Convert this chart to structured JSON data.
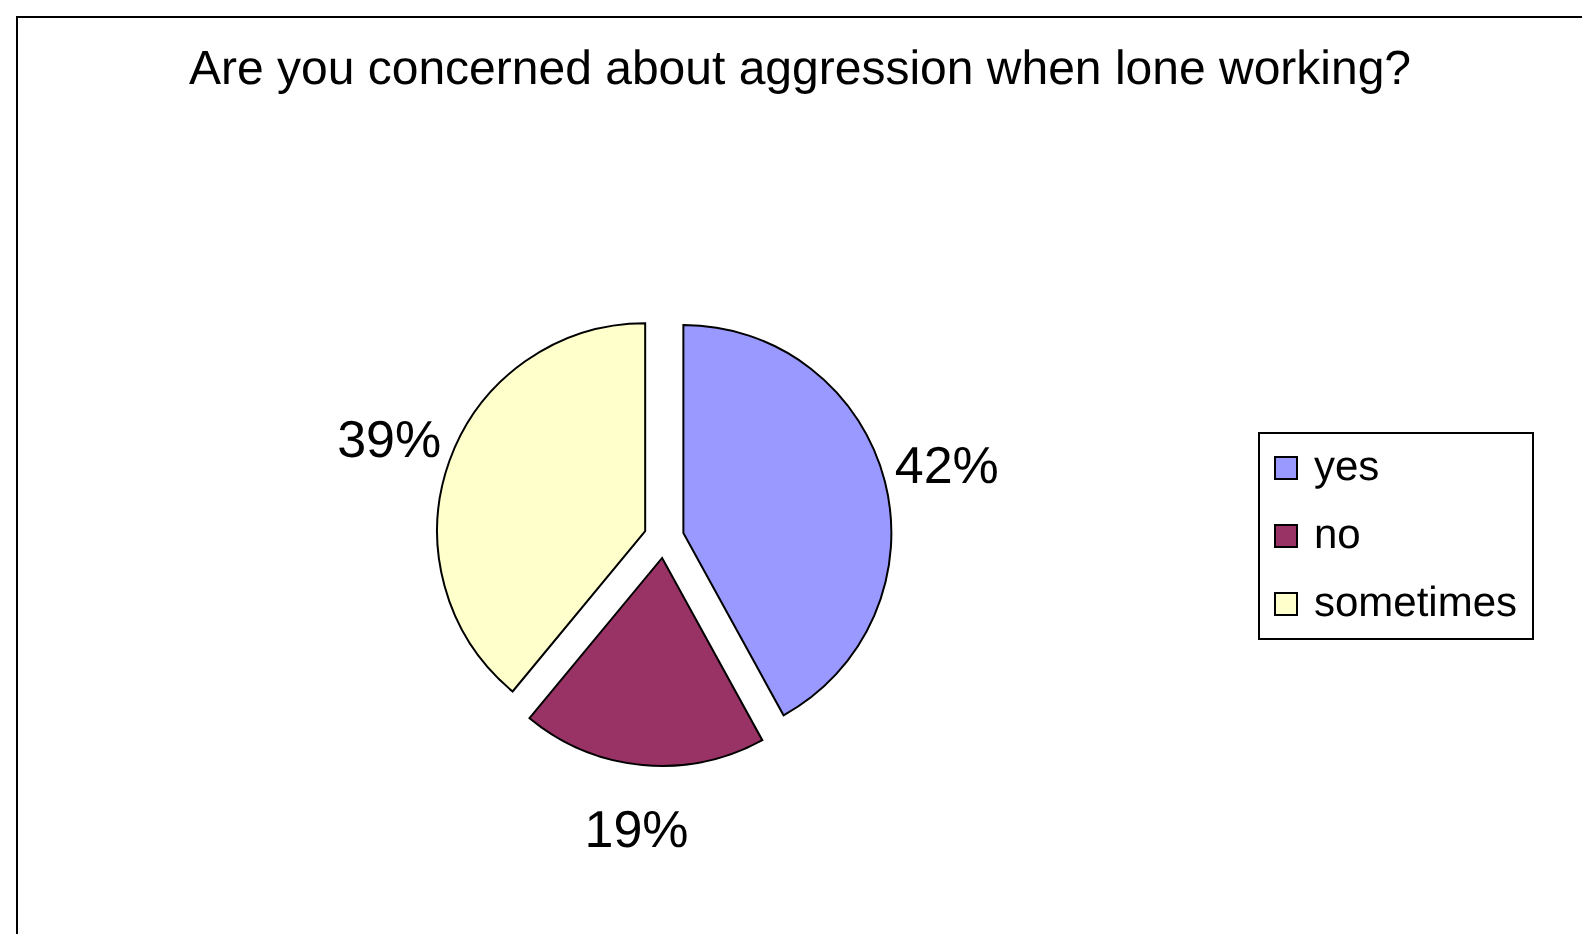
{
  "chart_data": {
    "type": "pie",
    "title": "Are you concerned about aggression when lone working?",
    "categories": [
      "yes",
      "no",
      "sometimes"
    ],
    "values": [
      42,
      19,
      39
    ],
    "colors": [
      "#9999ff",
      "#993366",
      "#ffffcc"
    ],
    "value_labels": [
      "42%",
      "19%",
      "39%"
    ],
    "legend": "right"
  }
}
